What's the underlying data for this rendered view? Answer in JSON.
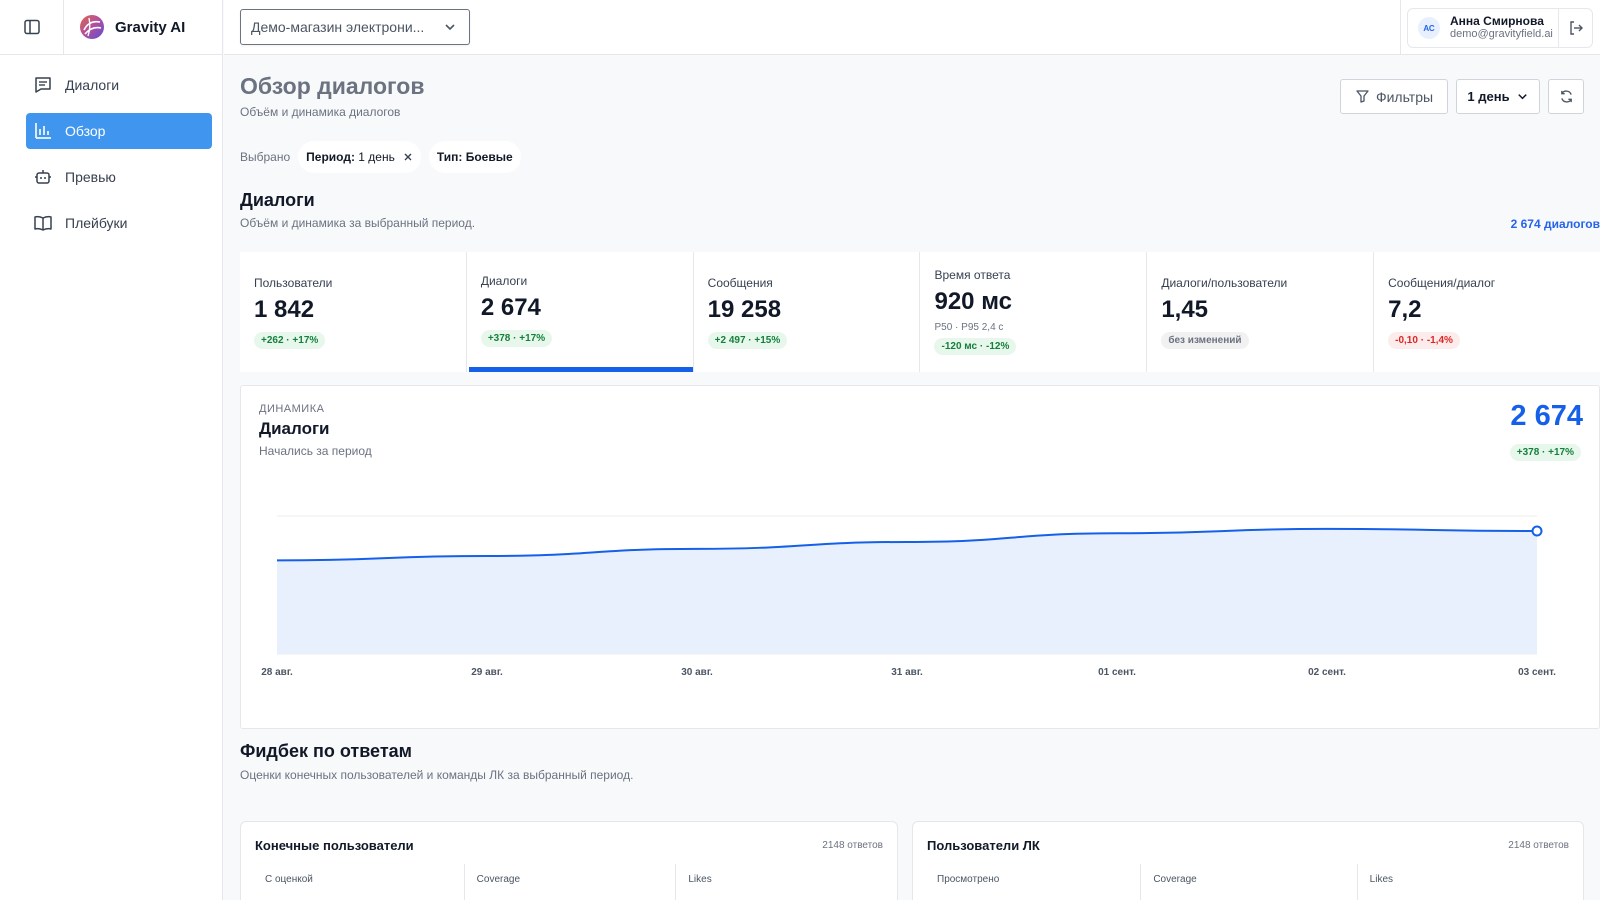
{
  "brand": {
    "name": "Gravity AI"
  },
  "topbar": {
    "store": "Демо-магазин электрони..."
  },
  "user": {
    "initials": "АС",
    "name": "Анна Смирнова",
    "email": "demo@gravityfield.ai"
  },
  "nav": [
    {
      "label": "Диалоги",
      "icon": "chat-icon"
    },
    {
      "label": "Обзор",
      "icon": "bar-chart-icon",
      "active": true
    },
    {
      "label": "Превью",
      "icon": "bot-icon"
    },
    {
      "label": "Плейбуки",
      "icon": "book-icon"
    }
  ],
  "header": {
    "title": "Обзор диалогов",
    "subtitle": "Объём и динамика диалогов",
    "filters_label": "Фильтры",
    "period_label": "1 день"
  },
  "chips": {
    "label": "Выбрано",
    "period_key": "Период:",
    "period_value": "1 день",
    "type_key": "Тип:",
    "type_value": "Боевые"
  },
  "dialogs_section": {
    "title": "Диалоги",
    "subtitle": "Объём и динамика за выбранный период.",
    "total_link": "2 674 диалогов"
  },
  "kpis": [
    {
      "label": "Пользователи",
      "value": "1 842",
      "badge": "+262 · +17%",
      "tone": "pos"
    },
    {
      "label": "Диалоги",
      "value": "2 674",
      "badge": "+378 · +17%",
      "tone": "pos",
      "selected": true
    },
    {
      "label": "Сообщения",
      "value": "19 258",
      "badge": "+2 497 · +15%",
      "tone": "pos"
    },
    {
      "label": "Время ответа",
      "value": "920 мс",
      "extra": "P50 · P95 2,4 с",
      "badge": "-120 мс · -12%",
      "tone": "pos"
    },
    {
      "label": "Диалоги/пользователи",
      "value": "1,45",
      "badge": "без изменений",
      "tone": "neu"
    },
    {
      "label": "Сообщения/диалог",
      "value": "7,2",
      "badge": "-0,10 · -1,4%",
      "tone": "neg"
    }
  ],
  "chart": {
    "overline": "ДИНАМИКА",
    "title": "Диалоги",
    "subtitle": "Начались за период",
    "big_value": "2 674",
    "badge": "+378 · +17%"
  },
  "chart_data": {
    "type": "area",
    "x": [
      "28 авг.",
      "29 авг.",
      "30 авг.",
      "31 авг.",
      "01 сент.",
      "02 сент.",
      "03 сент."
    ],
    "values": [
      2035,
      2130,
      2285,
      2435,
      2625,
      2720,
      2674
    ],
    "ylim": [
      0,
      3000
    ],
    "grid": true,
    "color": "#1560e8"
  },
  "feedback": {
    "title": "Фидбек по ответам",
    "subtitle": "Оценки конечных пользователей и команды ЛК за выбранный период.",
    "cards": [
      {
        "title": "Конечные пользователи",
        "count": "2148 ответов",
        "cols": [
          "С оценкой",
          "Coverage",
          "Likes"
        ]
      },
      {
        "title": "Пользователи ЛК",
        "count": "2148 ответов",
        "cols": [
          "Просмотрено",
          "Coverage",
          "Likes"
        ]
      }
    ]
  }
}
